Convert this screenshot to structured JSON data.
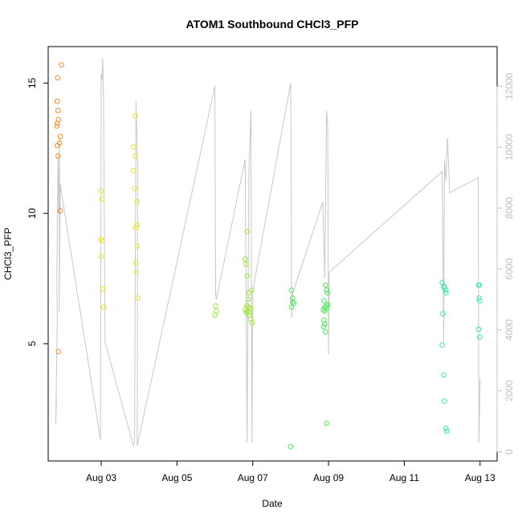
{
  "chart_data": {
    "type": "scatter",
    "title": "ATOM1 Southbound CHCl3_PFP",
    "xlabel": "Date",
    "ylabel": "CHCl3_PFP",
    "x_ticks": [
      "Aug 03",
      "Aug 05",
      "Aug 07",
      "Aug 09",
      "Aug 11",
      "Aug 13"
    ],
    "y_ticks": [
      "5",
      "10",
      "15"
    ],
    "y2_ticks": [
      "0",
      "2000",
      "4000",
      "6000",
      "8000",
      "10000",
      "12000"
    ],
    "ylim": [
      0.5,
      16.4
    ],
    "y2lim": [
      -300,
      13300
    ],
    "xlim_days": [
      1.6,
      13.45
    ],
    "x_tick_days": [
      3,
      5,
      7,
      9,
      11,
      13
    ],
    "y_tick_values": [
      5,
      10,
      15
    ],
    "y2_tick_values": [
      0,
      2000,
      4000,
      6000,
      8000,
      10000,
      12000
    ],
    "grid": false,
    "colors": {
      "axis": "#000000",
      "secondary_axis": "#c0c0c0",
      "altitude_line": "#c8c8c8",
      "points_early": "#f28c28",
      "points_mid": "#e6e62e",
      "points_late": "#38e8a8"
    },
    "points": [
      {
        "x": 1.95,
        "y": 15.7
      },
      {
        "x": 1.85,
        "y": 15.2
      },
      {
        "x": 1.84,
        "y": 14.3
      },
      {
        "x": 1.86,
        "y": 13.95
      },
      {
        "x": 1.87,
        "y": 13.6
      },
      {
        "x": 1.84,
        "y": 13.45
      },
      {
        "x": 1.83,
        "y": 13.35
      },
      {
        "x": 1.92,
        "y": 12.95
      },
      {
        "x": 1.9,
        "y": 12.7
      },
      {
        "x": 1.84,
        "y": 12.6
      },
      {
        "x": 1.86,
        "y": 12.2
      },
      {
        "x": 1.92,
        "y": 10.1
      },
      {
        "x": 1.87,
        "y": 4.7
      },
      {
        "x": 3.0,
        "y": 10.85
      },
      {
        "x": 3.02,
        "y": 10.55
      },
      {
        "x": 2.99,
        "y": 9.0
      },
      {
        "x": 3.02,
        "y": 8.95
      },
      {
        "x": 3.0,
        "y": 8.35
      },
      {
        "x": 3.05,
        "y": 7.1
      },
      {
        "x": 3.07,
        "y": 6.4
      },
      {
        "x": 3.9,
        "y": 13.75
      },
      {
        "x": 3.85,
        "y": 12.55
      },
      {
        "x": 3.9,
        "y": 12.2
      },
      {
        "x": 3.84,
        "y": 11.65
      },
      {
        "x": 3.88,
        "y": 10.95
      },
      {
        "x": 3.95,
        "y": 10.45
      },
      {
        "x": 3.95,
        "y": 9.55
      },
      {
        "x": 3.9,
        "y": 9.45
      },
      {
        "x": 3.95,
        "y": 8.75
      },
      {
        "x": 3.92,
        "y": 8.1
      },
      {
        "x": 3.92,
        "y": 7.75
      },
      {
        "x": 3.96,
        "y": 6.75
      },
      {
        "x": 6.02,
        "y": 6.45
      },
      {
        "x": 6.0,
        "y": 6.1
      },
      {
        "x": 6.04,
        "y": 6.25
      },
      {
        "x": 6.85,
        "y": 9.3
      },
      {
        "x": 6.8,
        "y": 8.25
      },
      {
        "x": 6.82,
        "y": 8.05
      },
      {
        "x": 6.86,
        "y": 7.6
      },
      {
        "x": 6.97,
        "y": 7.05
      },
      {
        "x": 6.9,
        "y": 6.95
      },
      {
        "x": 6.88,
        "y": 6.7
      },
      {
        "x": 6.84,
        "y": 6.45
      },
      {
        "x": 6.9,
        "y": 6.4
      },
      {
        "x": 6.95,
        "y": 6.35
      },
      {
        "x": 6.8,
        "y": 6.3
      },
      {
        "x": 6.86,
        "y": 6.25
      },
      {
        "x": 6.83,
        "y": 6.2
      },
      {
        "x": 6.92,
        "y": 6.2
      },
      {
        "x": 6.9,
        "y": 6.1
      },
      {
        "x": 6.94,
        "y": 5.95
      },
      {
        "x": 6.98,
        "y": 5.8
      },
      {
        "x": 8.02,
        "y": 7.05
      },
      {
        "x": 8.05,
        "y": 6.75
      },
      {
        "x": 8.05,
        "y": 6.6
      },
      {
        "x": 8.08,
        "y": 6.55
      },
      {
        "x": 8.02,
        "y": 6.4
      },
      {
        "x": 8.0,
        "y": 1.05
      },
      {
        "x": 8.92,
        "y": 7.25
      },
      {
        "x": 8.95,
        "y": 7.05
      },
      {
        "x": 8.97,
        "y": 6.95
      },
      {
        "x": 8.88,
        "y": 6.65
      },
      {
        "x": 8.98,
        "y": 6.5
      },
      {
        "x": 8.93,
        "y": 6.45
      },
      {
        "x": 8.9,
        "y": 6.4
      },
      {
        "x": 8.94,
        "y": 6.35
      },
      {
        "x": 8.86,
        "y": 6.3
      },
      {
        "x": 8.9,
        "y": 6.25
      },
      {
        "x": 8.88,
        "y": 5.9
      },
      {
        "x": 8.9,
        "y": 5.75
      },
      {
        "x": 8.87,
        "y": 5.65
      },
      {
        "x": 8.92,
        "y": 5.45
      },
      {
        "x": 8.95,
        "y": 1.95
      },
      {
        "x": 12.0,
        "y": 7.35
      },
      {
        "x": 12.04,
        "y": 7.2
      },
      {
        "x": 12.06,
        "y": 7.15
      },
      {
        "x": 12.1,
        "y": 7.05
      },
      {
        "x": 12.1,
        "y": 6.95
      },
      {
        "x": 12.02,
        "y": 6.15
      },
      {
        "x": 12.0,
        "y": 4.95
      },
      {
        "x": 12.04,
        "y": 3.8
      },
      {
        "x": 12.06,
        "y": 2.8
      },
      {
        "x": 12.1,
        "y": 1.75
      },
      {
        "x": 12.12,
        "y": 1.65
      },
      {
        "x": 12.96,
        "y": 7.25
      },
      {
        "x": 12.98,
        "y": 7.25
      },
      {
        "x": 12.97,
        "y": 6.75
      },
      {
        "x": 12.99,
        "y": 6.65
      },
      {
        "x": 12.96,
        "y": 5.55
      },
      {
        "x": 12.99,
        "y": 5.25
      }
    ],
    "altitude": [
      [
        1.8,
        1200
      ],
      [
        1.82,
        1800
      ],
      [
        1.8,
        900
      ],
      [
        1.84,
        4300
      ],
      [
        1.83,
        5700
      ],
      [
        1.86,
        9800
      ],
      [
        1.88,
        7800
      ],
      [
        1.9,
        10300
      ],
      [
        1.89,
        4600
      ],
      [
        1.92,
        8800
      ],
      [
        1.94,
        8600
      ],
      [
        2.98,
        400
      ],
      [
        3.0,
        12400
      ],
      [
        3.02,
        12200
      ],
      [
        3.04,
        12900
      ],
      [
        3.06,
        11600
      ],
      [
        3.1,
        3600
      ],
      [
        3.85,
        200
      ],
      [
        3.88,
        300
      ],
      [
        3.9,
        6400
      ],
      [
        3.92,
        11500
      ],
      [
        3.96,
        9400
      ],
      [
        3.95,
        200
      ],
      [
        6.0,
        12000
      ],
      [
        6.02,
        5200
      ],
      [
        6.04,
        5000
      ],
      [
        6.8,
        9600
      ],
      [
        6.85,
        300
      ],
      [
        6.9,
        9200
      ],
      [
        6.95,
        11200
      ],
      [
        6.98,
        300
      ],
      [
        7.0,
        5300
      ],
      [
        8.0,
        12100
      ],
      [
        8.03,
        4400
      ],
      [
        8.05,
        5200
      ],
      [
        8.85,
        8200
      ],
      [
        8.9,
        5700
      ],
      [
        8.95,
        11200
      ],
      [
        8.98,
        10600
      ],
      [
        9.0,
        3200
      ],
      [
        9.02,
        5900
      ],
      [
        12.0,
        9200
      ],
      [
        12.04,
        3600
      ],
      [
        12.06,
        9600
      ],
      [
        12.1,
        8900
      ],
      [
        12.14,
        10300
      ],
      [
        12.2,
        8500
      ],
      [
        12.95,
        9000
      ],
      [
        12.97,
        300
      ],
      [
        13.0,
        2400
      ]
    ]
  }
}
